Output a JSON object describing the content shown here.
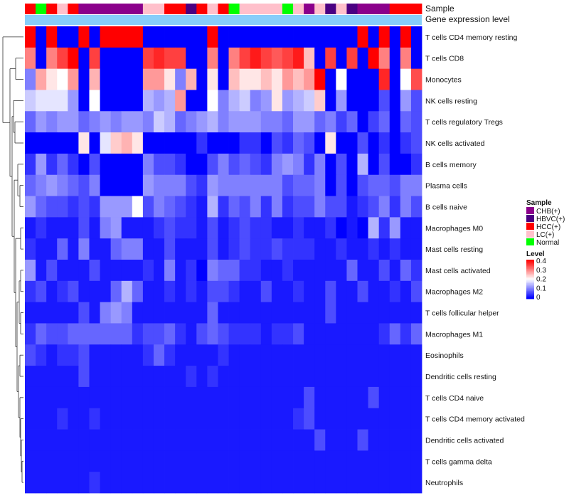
{
  "chart_data": {
    "type": "heatmap",
    "annotation_labels": {
      "sample": "Sample",
      "expression": "Gene expression level"
    },
    "rows": [
      "T cells CD4 memory resting",
      "T cells CD8",
      "Monocytes",
      "NK cells resting",
      "T cells regulatory  Tregs",
      "NK cells activated",
      "B cells memory",
      "Plasma cells",
      "B cells naive",
      "Macrophages M0",
      "Mast cells resting",
      "Mast cells activated",
      "Macrophages M2",
      "T cells follicular helper",
      "Macrophages M1",
      "Eosinophils",
      "Dendritic cells resting",
      "T cells CD4 naive",
      "T cells CD4 memory activated",
      "Dendritic cells activated",
      "T cells gamma delta",
      "Neutrophils"
    ],
    "sample_groups": [
      "HCC(+)",
      "Normal",
      "HCC(+)",
      "LC(+)",
      "HCC(+)",
      "CHB(+)",
      "CHB(+)",
      "CHB(+)",
      "CHB(+)",
      "CHB(+)",
      "CHB(+)",
      "LC(+)",
      "LC(+)",
      "HCC(+)",
      "HCC(+)",
      "HBVC(+)",
      "HCC(+)",
      "LC(+)",
      "HCC(+)",
      "Normal",
      "LC(+)",
      "LC(+)",
      "LC(+)",
      "LC(+)",
      "Normal",
      "LC(+)",
      "CHB(+)",
      "LC(+)",
      "HBVC(+)",
      "LC(+)",
      "HBVC(+)",
      "CHB(+)",
      "CHB(+)",
      "CHB(+)",
      "HCC(+)",
      "HCC(+)",
      "HCC(+)"
    ],
    "legend_sample": {
      "title": "Sample",
      "items": [
        {
          "label": "CHB(+)",
          "color": "#8b008b"
        },
        {
          "label": "HBVC(+)",
          "color": "#4b0082"
        },
        {
          "label": "HCC(+)",
          "color": "#ff0000"
        },
        {
          "label": "LC(+)",
          "color": "#ffc0cb"
        },
        {
          "label": "Normal",
          "color": "#00ff00"
        }
      ]
    },
    "legend_level": {
      "title": "Level",
      "ticks": [
        "0.4",
        "0.3",
        "0.2",
        "0.1",
        "0"
      ],
      "range": [
        0,
        0.4
      ]
    },
    "expression_bar_color": "#87cefa",
    "values": [
      [
        0.4,
        0.0,
        0.4,
        0.0,
        0.0,
        0.4,
        0.0,
        0.4,
        0.4,
        0.4,
        0.4,
        0.0,
        0.0,
        0.0,
        0.0,
        0.0,
        0.0,
        0.4,
        0.0,
        0.0,
        0.0,
        0.0,
        0.0,
        0.0,
        0.0,
        0.0,
        0.0,
        0.0,
        0.0,
        0.0,
        0.0,
        0.4,
        0.0,
        0.4,
        0.0,
        0.4,
        0.0
      ],
      [
        0.3,
        0.0,
        0.3,
        0.35,
        0.4,
        0.0,
        0.35,
        0.0,
        0.0,
        0.0,
        0.0,
        0.35,
        0.37,
        0.35,
        0.35,
        0.0,
        0.0,
        0.3,
        0.0,
        0.3,
        0.35,
        0.38,
        0.35,
        0.33,
        0.35,
        0.38,
        0.25,
        0.0,
        0.35,
        0.0,
        0.35,
        0.0,
        0.4,
        0.3,
        0.0,
        0.3,
        0.0
      ],
      [
        0.1,
        0.27,
        0.22,
        0.2,
        0.28,
        0.0,
        0.26,
        0.0,
        0.0,
        0.0,
        0.0,
        0.28,
        0.28,
        0.22,
        0.1,
        0.26,
        0.0,
        0.22,
        0.0,
        0.25,
        0.22,
        0.22,
        0.25,
        0.22,
        0.28,
        0.25,
        0.28,
        0.4,
        0.0,
        0.2,
        0.0,
        0.0,
        0.0,
        0.37,
        0.0,
        0.2,
        0.34
      ],
      [
        0.16,
        0.18,
        0.18,
        0.18,
        0.12,
        0.0,
        0.2,
        0.0,
        0.0,
        0.0,
        0.0,
        0.14,
        0.12,
        0.14,
        0.28,
        0.0,
        0.0,
        0.2,
        0.1,
        0.14,
        0.16,
        0.1,
        0.12,
        0.22,
        0.12,
        0.14,
        0.16,
        0.24,
        0.0,
        0.12,
        0.0,
        0.0,
        0.0,
        0.06,
        0.0,
        0.12,
        0.06
      ],
      [
        0.08,
        0.12,
        0.1,
        0.12,
        0.12,
        0.08,
        0.1,
        0.12,
        0.1,
        0.12,
        0.12,
        0.1,
        0.16,
        0.14,
        0.08,
        0.1,
        0.12,
        0.14,
        0.1,
        0.12,
        0.12,
        0.12,
        0.1,
        0.1,
        0.08,
        0.12,
        0.12,
        0.08,
        0.1,
        0.05,
        0.08,
        0.0,
        0.05,
        0.08,
        0.0,
        0.08,
        0.06
      ],
      [
        0.0,
        0.0,
        0.0,
        0.0,
        0.0,
        0.22,
        0.0,
        0.18,
        0.24,
        0.26,
        0.22,
        0.0,
        0.0,
        0.0,
        0.0,
        0.0,
        0.04,
        0.0,
        0.0,
        0.0,
        0.04,
        0.04,
        0.0,
        0.06,
        0.04,
        0.08,
        0.06,
        0.0,
        0.22,
        0.0,
        0.0,
        0.06,
        0.0,
        0.04,
        0.0,
        0.04,
        0.06
      ],
      [
        0.04,
        0.12,
        0.04,
        0.08,
        0.04,
        0.0,
        0.06,
        0.0,
        0.0,
        0.0,
        0.0,
        0.1,
        0.06,
        0.06,
        0.04,
        0.0,
        0.0,
        0.06,
        0.1,
        0.06,
        0.08,
        0.06,
        0.04,
        0.1,
        0.12,
        0.1,
        0.04,
        0.1,
        0.0,
        0.06,
        0.0,
        0.14,
        0.0,
        0.06,
        0.0,
        0.0,
        0.04
      ],
      [
        0.08,
        0.1,
        0.12,
        0.1,
        0.08,
        0.06,
        0.1,
        0.0,
        0.0,
        0.0,
        0.0,
        0.12,
        0.1,
        0.1,
        0.1,
        0.06,
        0.04,
        0.12,
        0.1,
        0.1,
        0.1,
        0.1,
        0.1,
        0.1,
        0.06,
        0.08,
        0.08,
        0.1,
        0.0,
        0.06,
        0.0,
        0.06,
        0.08,
        0.08,
        0.06,
        0.1,
        0.1
      ],
      [
        0.12,
        0.08,
        0.06,
        0.06,
        0.04,
        0.06,
        0.04,
        0.12,
        0.12,
        0.12,
        0.2,
        0.06,
        0.1,
        0.08,
        0.06,
        0.04,
        0.02,
        0.14,
        0.04,
        0.08,
        0.06,
        0.1,
        0.04,
        0.1,
        0.04,
        0.06,
        0.06,
        0.1,
        0.06,
        0.06,
        0.02,
        0.04,
        0.06,
        0.1,
        0.04,
        0.1,
        0.06
      ],
      [
        0.02,
        0.04,
        0.02,
        0.02,
        0.02,
        0.06,
        0.02,
        0.1,
        0.12,
        0.02,
        0.02,
        0.02,
        0.04,
        0.06,
        0.04,
        0.04,
        0.02,
        0.06,
        0.02,
        0.04,
        0.06,
        0.04,
        0.04,
        0.02,
        0.02,
        0.04,
        0.02,
        0.02,
        0.04,
        0.0,
        0.02,
        0.0,
        0.14,
        0.04,
        0.12,
        0.02,
        0.02
      ],
      [
        0.04,
        0.02,
        0.02,
        0.08,
        0.02,
        0.1,
        0.02,
        0.02,
        0.08,
        0.1,
        0.1,
        0.02,
        0.02,
        0.06,
        0.02,
        0.02,
        0.02,
        0.06,
        0.02,
        0.04,
        0.06,
        0.04,
        0.04,
        0.06,
        0.04,
        0.04,
        0.04,
        0.02,
        0.02,
        0.04,
        0.02,
        0.02,
        0.04,
        0.02,
        0.04,
        0.02,
        0.02
      ],
      [
        0.12,
        0.02,
        0.06,
        0.02,
        0.02,
        0.02,
        0.06,
        0.02,
        0.02,
        0.02,
        0.02,
        0.04,
        0.02,
        0.1,
        0.02,
        0.04,
        0.0,
        0.1,
        0.08,
        0.08,
        0.04,
        0.04,
        0.02,
        0.02,
        0.04,
        0.02,
        0.02,
        0.02,
        0.02,
        0.02,
        0.08,
        0.02,
        0.02,
        0.06,
        0.02,
        0.08,
        0.04
      ],
      [
        0.04,
        0.06,
        0.02,
        0.04,
        0.06,
        0.02,
        0.02,
        0.02,
        0.08,
        0.14,
        0.08,
        0.02,
        0.02,
        0.04,
        0.02,
        0.04,
        0.02,
        0.06,
        0.06,
        0.04,
        0.02,
        0.02,
        0.06,
        0.02,
        0.02,
        0.04,
        0.02,
        0.02,
        0.06,
        0.02,
        0.02,
        0.06,
        0.02,
        0.02,
        0.04,
        0.02,
        0.06
      ],
      [
        0.02,
        0.02,
        0.02,
        0.02,
        0.02,
        0.06,
        0.02,
        0.1,
        0.12,
        0.1,
        0.02,
        0.02,
        0.02,
        0.02,
        0.02,
        0.02,
        0.02,
        0.08,
        0.02,
        0.02,
        0.02,
        0.02,
        0.02,
        0.02,
        0.02,
        0.02,
        0.02,
        0.02,
        0.06,
        0.02,
        0.02,
        0.02,
        0.02,
        0.02,
        0.02,
        0.02,
        0.02
      ],
      [
        0.04,
        0.08,
        0.06,
        0.06,
        0.08,
        0.08,
        0.08,
        0.08,
        0.08,
        0.08,
        0.04,
        0.06,
        0.06,
        0.08,
        0.04,
        0.02,
        0.06,
        0.08,
        0.06,
        0.04,
        0.04,
        0.04,
        0.02,
        0.04,
        0.04,
        0.06,
        0.02,
        0.02,
        0.02,
        0.02,
        0.02,
        0.02,
        0.02,
        0.04,
        0.08,
        0.04,
        0.08
      ],
      [
        0.06,
        0.04,
        0.02,
        0.04,
        0.04,
        0.06,
        0.02,
        0.02,
        0.02,
        0.02,
        0.02,
        0.04,
        0.08,
        0.04,
        0.02,
        0.02,
        0.02,
        0.02,
        0.04,
        0.02,
        0.02,
        0.02,
        0.02,
        0.02,
        0.02,
        0.02,
        0.02,
        0.02,
        0.02,
        0.02,
        0.02,
        0.02,
        0.02,
        0.02,
        0.02,
        0.02,
        0.02
      ],
      [
        0.02,
        0.02,
        0.02,
        0.02,
        0.02,
        0.06,
        0.02,
        0.02,
        0.02,
        0.02,
        0.02,
        0.02,
        0.02,
        0.02,
        0.02,
        0.04,
        0.02,
        0.04,
        0.02,
        0.02,
        0.02,
        0.02,
        0.02,
        0.02,
        0.02,
        0.02,
        0.02,
        0.02,
        0.02,
        0.02,
        0.02,
        0.02,
        0.02,
        0.02,
        0.02,
        0.02,
        0.02
      ],
      [
        0.02,
        0.02,
        0.02,
        0.02,
        0.02,
        0.02,
        0.02,
        0.02,
        0.02,
        0.02,
        0.02,
        0.02,
        0.02,
        0.02,
        0.02,
        0.02,
        0.02,
        0.02,
        0.02,
        0.02,
        0.02,
        0.02,
        0.02,
        0.02,
        0.02,
        0.02,
        0.06,
        0.02,
        0.02,
        0.02,
        0.02,
        0.02,
        0.06,
        0.02,
        0.02,
        0.02,
        0.02
      ],
      [
        0.02,
        0.02,
        0.02,
        0.04,
        0.02,
        0.02,
        0.04,
        0.02,
        0.02,
        0.02,
        0.02,
        0.02,
        0.02,
        0.02,
        0.02,
        0.02,
        0.02,
        0.02,
        0.02,
        0.02,
        0.02,
        0.02,
        0.02,
        0.02,
        0.02,
        0.04,
        0.06,
        0.02,
        0.02,
        0.02,
        0.02,
        0.02,
        0.02,
        0.02,
        0.02,
        0.02,
        0.02
      ],
      [
        0.02,
        0.02,
        0.02,
        0.02,
        0.02,
        0.02,
        0.02,
        0.02,
        0.02,
        0.02,
        0.02,
        0.02,
        0.02,
        0.02,
        0.02,
        0.02,
        0.02,
        0.02,
        0.02,
        0.02,
        0.02,
        0.02,
        0.02,
        0.02,
        0.02,
        0.02,
        0.02,
        0.06,
        0.02,
        0.02,
        0.02,
        0.06,
        0.02,
        0.02,
        0.02,
        0.02,
        0.02
      ],
      [
        0.02,
        0.02,
        0.02,
        0.02,
        0.02,
        0.02,
        0.02,
        0.02,
        0.02,
        0.02,
        0.02,
        0.02,
        0.02,
        0.02,
        0.02,
        0.02,
        0.02,
        0.02,
        0.02,
        0.02,
        0.02,
        0.02,
        0.02,
        0.02,
        0.02,
        0.02,
        0.02,
        0.02,
        0.02,
        0.02,
        0.02,
        0.02,
        0.02,
        0.02,
        0.02,
        0.02,
        0.02
      ],
      [
        0.02,
        0.02,
        0.02,
        0.02,
        0.02,
        0.02,
        0.04,
        0.02,
        0.02,
        0.02,
        0.02,
        0.02,
        0.02,
        0.02,
        0.02,
        0.02,
        0.02,
        0.02,
        0.02,
        0.02,
        0.02,
        0.02,
        0.02,
        0.02,
        0.02,
        0.02,
        0.02,
        0.02,
        0.02,
        0.02,
        0.02,
        0.02,
        0.02,
        0.02,
        0.02,
        0.02,
        0.02
      ]
    ]
  }
}
